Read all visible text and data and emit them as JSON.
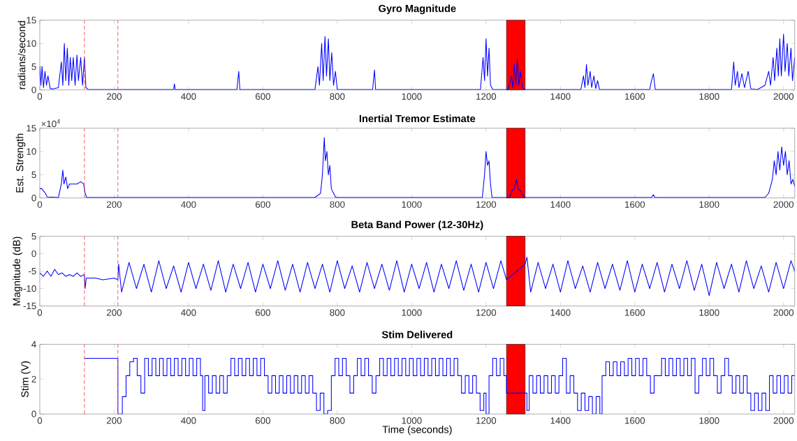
{
  "chart_data": [
    {
      "type": "line",
      "title": "Gyro Magnitude",
      "ylabel": "radians/second",
      "xlim": [
        0,
        2030
      ],
      "ylim": [
        0,
        15
      ],
      "xticks": [
        0,
        200,
        400,
        600,
        800,
        1000,
        1200,
        1400,
        1600,
        1800,
        2000
      ],
      "yticks": [
        0,
        5,
        10,
        15
      ],
      "ref_lines": [
        {
          "axis": "x",
          "value": 120,
          "color": "#ff5050",
          "line_style": "dashed"
        },
        {
          "axis": "x",
          "value": 210,
          "color": "#ff5050",
          "line_style": "dashed"
        }
      ],
      "bands": [
        {
          "axis": "x",
          "from": 1255,
          "to": 1305,
          "color": "#ff0000"
        }
      ],
      "series": [
        {
          "color": "#0000ff",
          "x": [
            0,
            3,
            6,
            10,
            14,
            18,
            22,
            28,
            35,
            50,
            58,
            62,
            66,
            70,
            74,
            78,
            82,
            86,
            90,
            95,
            100,
            104,
            110,
            115,
            120,
            124,
            130,
            360,
            362,
            364,
            530,
            535,
            538,
            740,
            748,
            752,
            758,
            762,
            767,
            771,
            776,
            780,
            785,
            790,
            795,
            800,
            895,
            900,
            903,
            1185,
            1192,
            1196,
            1200,
            1204,
            1208,
            1212,
            1218,
            1260,
            1268,
            1272,
            1276,
            1280,
            1284,
            1288,
            1292,
            1298,
            1305,
            1455,
            1462,
            1466,
            1470,
            1474,
            1480,
            1484,
            1490,
            1495,
            1500,
            1505,
            1640,
            1645,
            1650,
            1655,
            1860,
            1866,
            1870,
            1876,
            1880,
            1888,
            1895,
            1905,
            1912,
            1930,
            1950,
            1960,
            1965,
            1972,
            1976,
            1982,
            1986,
            1990,
            1994,
            2000,
            2004,
            2010,
            2014,
            2020,
            2024,
            2030
          ],
          "values": [
            5,
            1,
            5,
            0.5,
            4,
            1,
            3,
            0.3,
            0.2,
            0.5,
            6,
            1,
            10,
            2,
            9,
            1,
            7,
            2,
            7,
            1,
            7.5,
            2,
            7,
            1,
            7,
            0.5,
            0.1,
            0.1,
            1.3,
            0.1,
            0.1,
            4,
            0.1,
            0.1,
            5,
            1,
            10,
            2,
            11.5,
            3,
            11,
            2,
            8,
            1,
            4,
            0.1,
            0.1,
            4.3,
            0.1,
            0.1,
            7,
            2,
            11,
            3,
            9,
            1,
            0.1,
            0.1,
            3,
            0.5,
            5.5,
            1,
            6.5,
            1,
            4,
            0.5,
            0.1,
            0.1,
            3,
            0.5,
            5.5,
            1,
            4,
            0.5,
            3,
            0.3,
            2,
            0.1,
            0.1,
            2,
            3.5,
            0.1,
            0.1,
            6,
            1,
            4,
            0.5,
            3.5,
            0.5,
            4,
            0.2,
            0.1,
            1,
            4,
            1,
            7,
            2,
            9,
            3,
            11,
            3,
            12,
            4,
            10,
            3,
            9,
            2,
            7
          ]
        }
      ]
    },
    {
      "type": "line",
      "title": "Inertial Tremor Estimate",
      "ylabel": "Est. Strength",
      "annotations": [
        "×10$^{4}$"
      ],
      "xlim": [
        0,
        2030
      ],
      "ylim": [
        0,
        15
      ],
      "xticks": [
        0,
        200,
        400,
        600,
        800,
        1000,
        1200,
        1400,
        1600,
        1800,
        2000
      ],
      "yticks": [
        0,
        5,
        10,
        15
      ],
      "ref_lines": [
        {
          "axis": "x",
          "value": 120,
          "color": "#ff5050",
          "line_style": "dashed"
        },
        {
          "axis": "x",
          "value": 210,
          "color": "#ff5050",
          "line_style": "dashed"
        }
      ],
      "bands": [
        {
          "axis": "x",
          "from": 1255,
          "to": 1305,
          "color": "#ff0000"
        }
      ],
      "series": [
        {
          "color": "#0000ff",
          "x": [
            0,
            5,
            10,
            15,
            20,
            50,
            58,
            62,
            65,
            70,
            75,
            80,
            90,
            100,
            110,
            118,
            122,
            126,
            740,
            755,
            760,
            765,
            768,
            772,
            776,
            780,
            784,
            790,
            796,
            1190,
            1196,
            1200,
            1204,
            1208,
            1212,
            1216,
            1262,
            1270,
            1276,
            1282,
            1286,
            1292,
            1300,
            1304,
            1645,
            1650,
            1654,
            1950,
            1960,
            1970,
            1975,
            1980,
            1985,
            1990,
            1995,
            2000,
            2005,
            2010,
            2015,
            2020,
            2025,
            2030
          ],
          "values": [
            2,
            2,
            1.5,
            1,
            0.2,
            0.1,
            3,
            6,
            3,
            4.5,
            2,
            3,
            3,
            3,
            3.5,
            3,
            1,
            0.1,
            0.1,
            1,
            5,
            13,
            8,
            10,
            5,
            7,
            2,
            1,
            0.1,
            0.1,
            5,
            10,
            7,
            8,
            3,
            0.1,
            0.1,
            1.5,
            2,
            4,
            2,
            1.5,
            0.5,
            0.1,
            0.1,
            0.7,
            0.1,
            0.1,
            1,
            4,
            8,
            5,
            10,
            6,
            11,
            7,
            10,
            5,
            8,
            3,
            4,
            2.5
          ]
        }
      ]
    },
    {
      "type": "line",
      "title": "Beta Band Power (12-30Hz)",
      "ylabel": "Magnitude (dB)",
      "xlim": [
        0,
        2030
      ],
      "ylim": [
        -15,
        5
      ],
      "xticks": [
        0,
        200,
        400,
        600,
        800,
        1000,
        1200,
        1400,
        1600,
        1800,
        2000
      ],
      "yticks": [
        -15,
        -10,
        -5,
        0,
        5
      ],
      "ref_lines": [
        {
          "axis": "x",
          "value": 120,
          "color": "#ff5050",
          "line_style": "dashed"
        },
        {
          "axis": "x",
          "value": 210,
          "color": "#ff5050",
          "line_style": "dashed"
        }
      ],
      "bands": [
        {
          "axis": "x",
          "from": 1255,
          "to": 1305,
          "color": "#ff0000"
        }
      ],
      "series": [
        {
          "color": "#0000ff",
          "x": [
            0,
            10,
            20,
            30,
            40,
            50,
            60,
            70,
            80,
            90,
            100,
            110,
            120,
            122,
            125,
            150,
            170,
            200,
            210,
            212,
            220,
            240,
            260,
            280,
            300,
            320,
            340,
            360,
            380,
            400,
            420,
            440,
            460,
            480,
            500,
            520,
            540,
            560,
            580,
            600,
            620,
            640,
            660,
            680,
            700,
            720,
            740,
            760,
            780,
            800,
            820,
            840,
            860,
            880,
            900,
            920,
            940,
            960,
            980,
            1000,
            1020,
            1040,
            1060,
            1080,
            1100,
            1120,
            1140,
            1160,
            1180,
            1200,
            1220,
            1240,
            1255,
            1305,
            1310,
            1320,
            1340,
            1360,
            1380,
            1400,
            1420,
            1440,
            1460,
            1480,
            1500,
            1520,
            1540,
            1560,
            1580,
            1600,
            1620,
            1640,
            1660,
            1680,
            1700,
            1720,
            1740,
            1760,
            1780,
            1800,
            1820,
            1840,
            1860,
            1880,
            1900,
            1920,
            1940,
            1960,
            1980,
            2000,
            2020,
            2030
          ],
          "values": [
            -5.5,
            -6.5,
            -5,
            -6.5,
            -4.5,
            -6,
            -5.5,
            -6.5,
            -6,
            -6.5,
            -5.5,
            -6.5,
            -6,
            -10,
            -7,
            -7,
            -7.5,
            -7,
            -7.5,
            -3,
            -11,
            -2.5,
            -10,
            -3,
            -11,
            -2,
            -10,
            -3.5,
            -11,
            -2.5,
            -10,
            -3,
            -10.5,
            -2,
            -11,
            -3,
            -10,
            -2.5,
            -11,
            -3,
            -10,
            -2,
            -10.5,
            -3,
            -11,
            -2.5,
            -10,
            -3,
            -11,
            -2,
            -10,
            -3.5,
            -11,
            -2.5,
            -10,
            -3,
            -10.5,
            -2,
            -11,
            -3,
            -10,
            -2.5,
            -11,
            -3,
            -10,
            -2,
            -10.5,
            -3,
            -11,
            -2.5,
            -10,
            -2,
            -7.5,
            -3,
            -1,
            -11,
            -2.5,
            -10,
            -3,
            -11,
            -2,
            -10,
            -3.5,
            -11,
            -2.5,
            -10,
            -3,
            -10.5,
            -2,
            -11,
            -3,
            -10,
            -2.5,
            -11,
            -3,
            -10,
            -2,
            -10.5,
            -3,
            -12,
            -2.5,
            -10,
            -3,
            -11,
            -2,
            -10,
            -3.5,
            -11,
            -2.5,
            -10,
            -2,
            -5
          ]
        }
      ]
    },
    {
      "type": "step",
      "title": "Stim Delivered",
      "xlabel": "Time (seconds)",
      "ylabel": "Stim (V)",
      "xlim": [
        0,
        2030
      ],
      "ylim": [
        0,
        4
      ],
      "xticks": [
        0,
        200,
        400,
        600,
        800,
        1000,
        1200,
        1400,
        1600,
        1800,
        2000
      ],
      "yticks": [
        0,
        2,
        4
      ],
      "ref_lines": [
        {
          "axis": "x",
          "value": 120,
          "color": "#ff5050",
          "line_style": "dashed"
        },
        {
          "axis": "x",
          "value": 210,
          "color": "#ff5050",
          "line_style": "dashed"
        }
      ],
      "bands": [
        {
          "axis": "x",
          "from": 1255,
          "to": 1305,
          "color": "#ff0000"
        }
      ],
      "series": [
        {
          "color": "#0000ff",
          "x": [
            120,
            210,
            222,
            232,
            242,
            252,
            262,
            272,
            282,
            292,
            302,
            312,
            322,
            332,
            342,
            352,
            362,
            372,
            382,
            392,
            402,
            412,
            422,
            432,
            438,
            444,
            454,
            464,
            474,
            484,
            494,
            504,
            514,
            524,
            534,
            544,
            554,
            564,
            574,
            584,
            594,
            604,
            614,
            624,
            634,
            644,
            654,
            664,
            674,
            684,
            694,
            704,
            714,
            724,
            734,
            744,
            754,
            764,
            774,
            784,
            794,
            804,
            814,
            824,
            834,
            844,
            854,
            864,
            874,
            884,
            894,
            904,
            914,
            924,
            934,
            944,
            954,
            964,
            974,
            984,
            994,
            1004,
            1014,
            1024,
            1034,
            1044,
            1054,
            1064,
            1074,
            1084,
            1094,
            1104,
            1114,
            1124,
            1134,
            1144,
            1154,
            1164,
            1174,
            1184,
            1194,
            1200,
            1208,
            1218,
            1228,
            1238,
            1248,
            1255,
            1305,
            1310,
            1316,
            1326,
            1336,
            1346,
            1356,
            1366,
            1376,
            1386,
            1396,
            1406,
            1416,
            1426,
            1436,
            1446,
            1456,
            1466,
            1476,
            1486,
            1496,
            1506,
            1512,
            1522,
            1532,
            1542,
            1552,
            1562,
            1572,
            1582,
            1592,
            1602,
            1612,
            1622,
            1632,
            1642,
            1652,
            1662,
            1672,
            1682,
            1692,
            1702,
            1712,
            1722,
            1732,
            1742,
            1752,
            1762,
            1772,
            1782,
            1792,
            1802,
            1812,
            1822,
            1832,
            1842,
            1852,
            1862,
            1872,
            1882,
            1892,
            1902,
            1912,
            1922,
            1932,
            1942,
            1952,
            1962,
            1972,
            1982,
            1992,
            2002,
            2012,
            2022,
            2030
          ],
          "values": [
            3.2,
            0,
            1,
            2.2,
            3,
            3.2,
            2.2,
            1.2,
            3.2,
            2.2,
            3.2,
            2.2,
            3.2,
            2.2,
            3.2,
            2.2,
            3.2,
            2.2,
            3.2,
            2.2,
            3.2,
            2.2,
            3.2,
            2.2,
            0.2,
            2.2,
            1.2,
            2.2,
            1.2,
            2.2,
            1.2,
            2.2,
            3.2,
            2.2,
            3.2,
            2.2,
            3.2,
            2.2,
            3.2,
            2.2,
            3.2,
            2.2,
            1.2,
            2.2,
            1.2,
            2.2,
            1.2,
            2.2,
            1.2,
            2.2,
            1.2,
            2.2,
            1.2,
            2.2,
            1.2,
            0.2,
            1.2,
            0,
            0.2,
            2.2,
            3.2,
            2.2,
            3.2,
            2.2,
            1.2,
            2.2,
            3.2,
            2.2,
            3.2,
            2.2,
            1.2,
            2.2,
            3.2,
            2.2,
            3.2,
            2.2,
            3.2,
            2.2,
            3.2,
            2.2,
            3.2,
            2.2,
            3.2,
            2.2,
            3.2,
            2.2,
            3.2,
            2.2,
            3.2,
            2.2,
            3.2,
            2.2,
            3.2,
            2.2,
            1.2,
            2.2,
            1.2,
            2.2,
            1.2,
            0.2,
            1.2,
            0,
            2.2,
            3.2,
            2.2,
            3.2,
            2.2,
            1.2,
            1.2,
            0.2,
            2.2,
            1.2,
            2.2,
            1.2,
            2.2,
            1.2,
            2.2,
            1.2,
            2.2,
            3.2,
            1.2,
            2.2,
            1.2,
            0.2,
            1.2,
            0.2,
            1,
            0,
            1,
            0,
            2.2,
            3,
            2.2,
            3,
            2.2,
            3,
            2.2,
            3.2,
            2.2,
            3.2,
            2.2,
            3.2,
            2.2,
            1.2,
            2.2,
            2.2,
            3.2,
            2.2,
            3.2,
            2.2,
            3.2,
            2.2,
            3.2,
            2.2,
            3.2,
            1.2,
            2.2,
            3.2,
            2.2,
            3.2,
            2.2,
            1.2,
            2.2,
            3.2,
            2.2,
            1.2,
            2.2,
            1.2,
            2.2,
            1.2,
            0.2,
            1.2,
            0.2,
            1.2,
            0.2,
            2.2,
            1.2,
            2.2,
            1.2,
            2.2,
            1.2,
            2.2,
            2.2
          ]
        }
      ]
    }
  ]
}
